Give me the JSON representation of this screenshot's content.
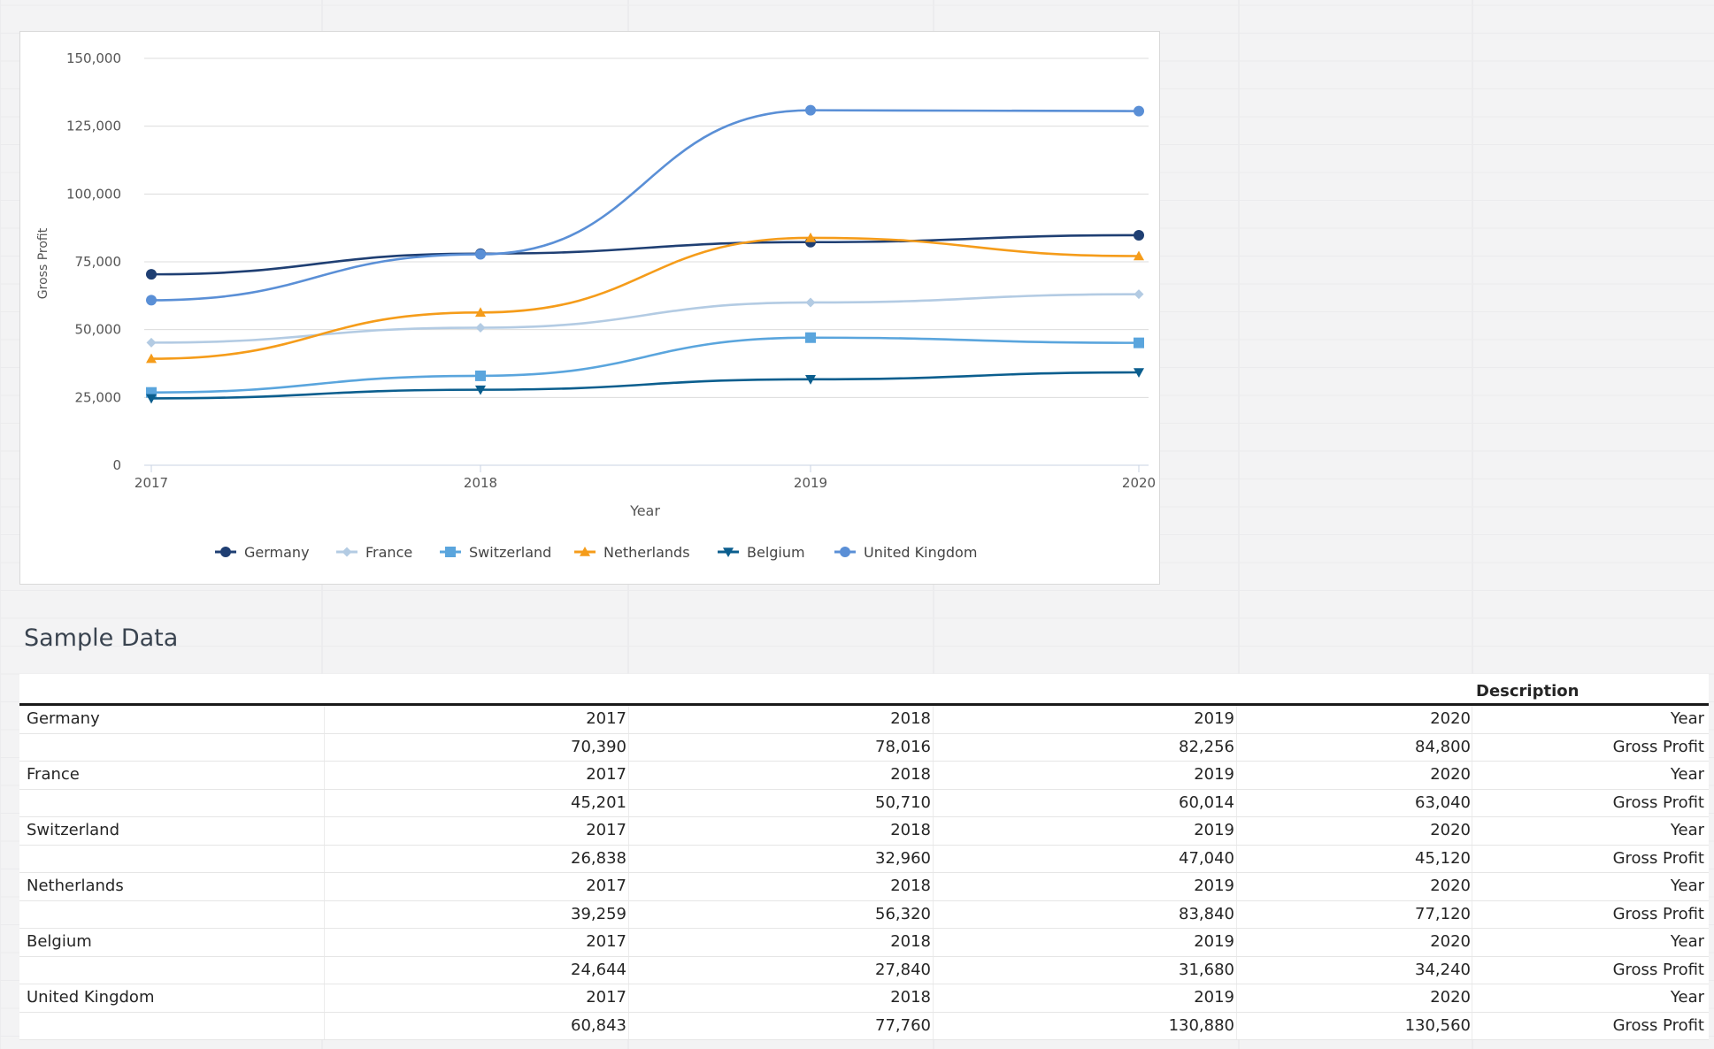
{
  "chart_data": {
    "type": "line",
    "smooth": true,
    "xlabel": "Year",
    "ylabel": "Gross Profit",
    "categories": [
      "2017",
      "2018",
      "2019",
      "2020"
    ],
    "y_ticks": [
      "0",
      "25,000",
      "50,000",
      "75,000",
      "100,000",
      "125,000",
      "150,000"
    ],
    "ylim": [
      0,
      150000
    ],
    "grid": true,
    "legend_position": "bottom",
    "series": [
      {
        "name": "Germany",
        "values": [
          70390,
          78016,
          82256,
          84800
        ],
        "color": "#1f3f73",
        "marker": "circle"
      },
      {
        "name": "France",
        "values": [
          45201,
          50710,
          60014,
          63040
        ],
        "color": "#b3cbe3",
        "marker": "diamond"
      },
      {
        "name": "Switzerland",
        "values": [
          26838,
          32960,
          47040,
          45120
        ],
        "color": "#5aa5dd",
        "marker": "square"
      },
      {
        "name": "Netherlands",
        "values": [
          39259,
          56320,
          83840,
          77120
        ],
        "color": "#f59c1a",
        "marker": "triangle-up"
      },
      {
        "name": "Belgium",
        "values": [
          24644,
          27840,
          31680,
          34240
        ],
        "color": "#0b5e8e",
        "marker": "triangle-down"
      },
      {
        "name": "United Kingdom",
        "values": [
          60843,
          77760,
          130880,
          130560
        ],
        "color": "#5a8fd6",
        "marker": "circle"
      }
    ]
  },
  "sample": {
    "title": "Sample Data",
    "description_header": "Description",
    "rows": [
      {
        "label": "Germany",
        "values": [
          "2017",
          "2018",
          "2019",
          "2020"
        ],
        "desc": "Year"
      },
      {
        "label": "",
        "values": [
          "70,390",
          "78,016",
          "82,256",
          "84,800"
        ],
        "desc": "Gross Profit"
      },
      {
        "label": "France",
        "values": [
          "2017",
          "2018",
          "2019",
          "2020"
        ],
        "desc": "Year"
      },
      {
        "label": "",
        "values": [
          "45,201",
          "50,710",
          "60,014",
          "63,040"
        ],
        "desc": "Gross Profit"
      },
      {
        "label": "Switzerland",
        "values": [
          "2017",
          "2018",
          "2019",
          "2020"
        ],
        "desc": "Year"
      },
      {
        "label": "",
        "values": [
          "26,838",
          "32,960",
          "47,040",
          "45,120"
        ],
        "desc": "Gross Profit"
      },
      {
        "label": "Netherlands",
        "values": [
          "2017",
          "2018",
          "2019",
          "2020"
        ],
        "desc": "Year"
      },
      {
        "label": "",
        "values": [
          "39,259",
          "56,320",
          "83,840",
          "77,120"
        ],
        "desc": "Gross Profit"
      },
      {
        "label": "Belgium",
        "values": [
          "2017",
          "2018",
          "2019",
          "2020"
        ],
        "desc": "Year"
      },
      {
        "label": "",
        "values": [
          "24,644",
          "27,840",
          "31,680",
          "34,240"
        ],
        "desc": "Gross Profit"
      },
      {
        "label": "United Kingdom",
        "values": [
          "2017",
          "2018",
          "2019",
          "2020"
        ],
        "desc": "Year"
      },
      {
        "label": "",
        "values": [
          "60,843",
          "77,760",
          "130,880",
          "130,560"
        ],
        "desc": "Gross Profit"
      }
    ]
  }
}
